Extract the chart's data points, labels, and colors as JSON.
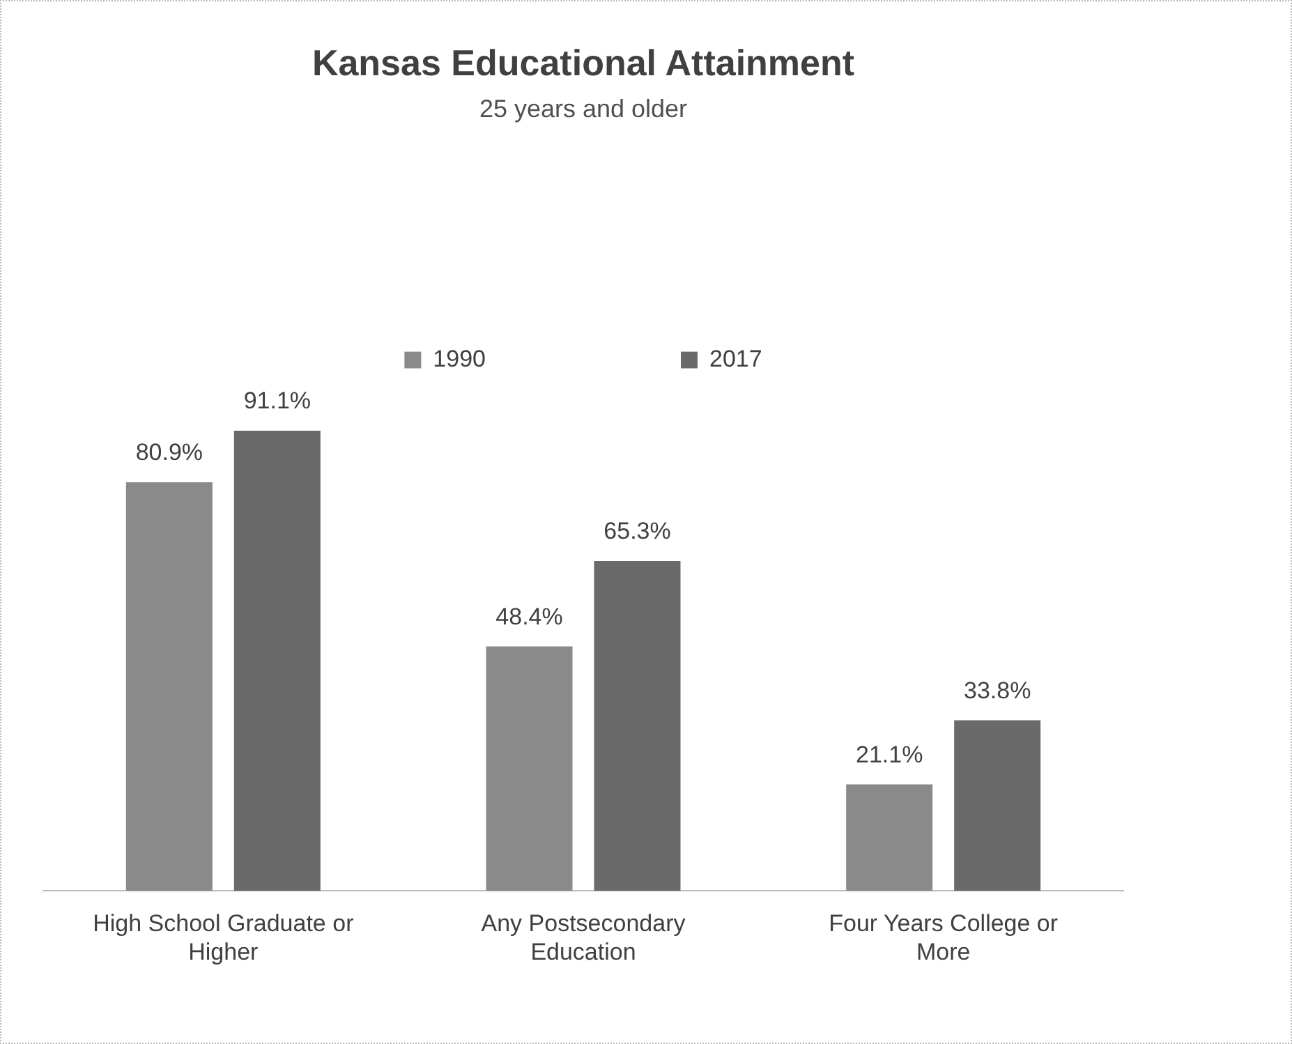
{
  "chart_data": {
    "type": "bar",
    "title": "Kansas Educational Attainment",
    "subtitle": "25 years and older",
    "categories": [
      "High School Graduate or Higher",
      "Any Postsecondary Education",
      "Four Years College or More"
    ],
    "series": [
      {
        "name": "1990",
        "color": "#8a8a8a",
        "values": [
          80.9,
          48.4,
          21.1
        ],
        "value_labels": [
          "80.9%",
          "48.4%",
          "21.1%"
        ]
      },
      {
        "name": "2017",
        "color": "#6a6a6a",
        "values": [
          91.1,
          65.3,
          33.8
        ],
        "value_labels": [
          "91.1%",
          "65.3%",
          "33.8%"
        ]
      }
    ],
    "grid": false,
    "legend": "top"
  }
}
